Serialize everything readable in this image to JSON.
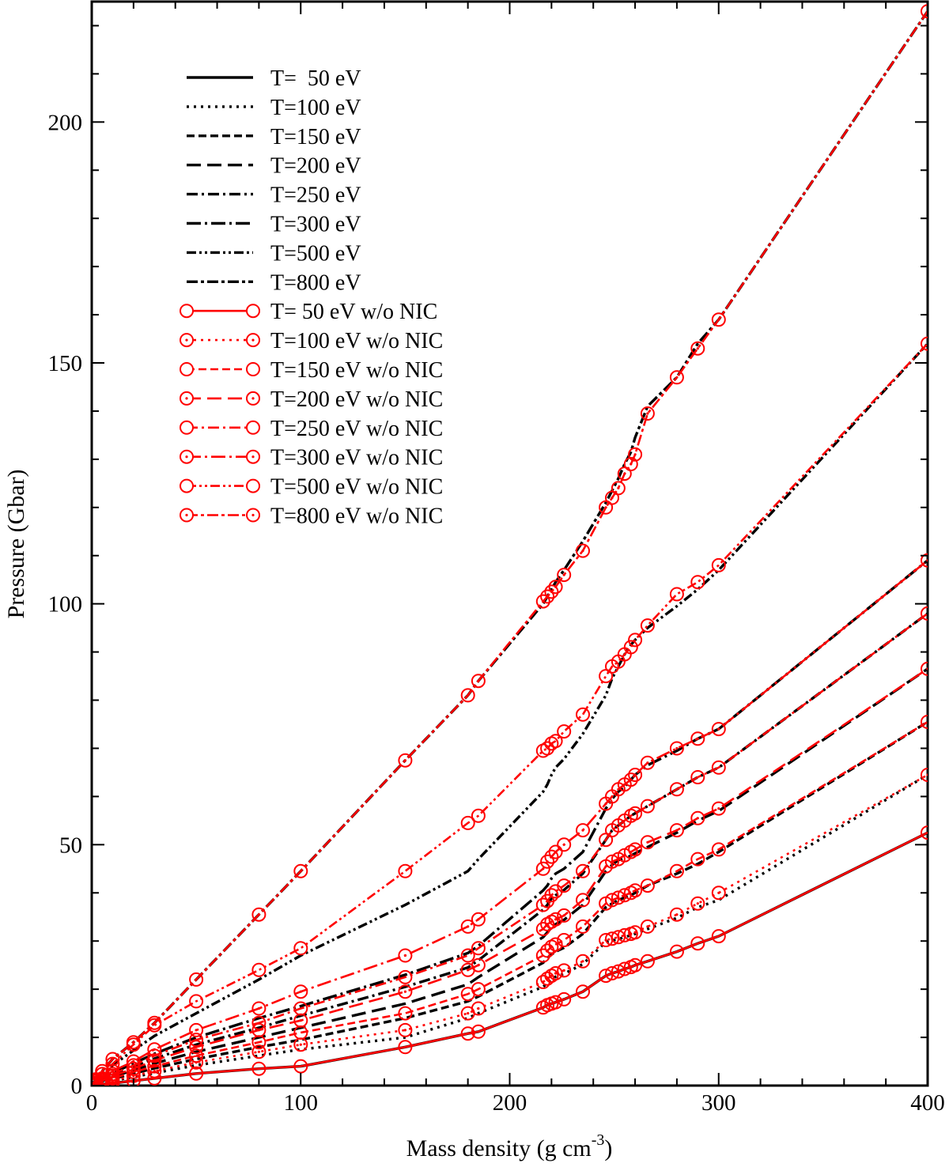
{
  "chart_data": {
    "type": "line",
    "title": "",
    "xlabel": "Mass density (g cm",
    "xlabel_sup": "-3",
    "xlabel_close": ")",
    "ylabel": "Pressure (Gbar)",
    "xlim": [
      0,
      400
    ],
    "ylim": [
      0,
      225
    ],
    "xticks": [
      0,
      100,
      200,
      300,
      400
    ],
    "yticks": [
      0,
      50,
      100,
      150,
      200
    ],
    "grid": false,
    "legend_position": "top-left",
    "x": [
      1,
      2,
      5,
      10,
      20,
      30,
      50,
      80,
      100,
      150,
      180,
      185,
      216,
      218,
      220,
      222,
      226,
      235,
      246,
      249,
      252,
      255,
      258,
      260,
      266,
      280,
      290,
      300,
      400
    ],
    "series": [
      {
        "name": "T=  50 eV",
        "model": "full",
        "color": "#000000",
        "dash": "",
        "values": [
          0.05,
          0.1,
          0.3,
          0.5,
          1.0,
          1.5,
          2.5,
          3.5,
          4.0,
          8.0,
          10.8,
          11.2,
          16.2,
          16.7,
          17.0,
          17.3,
          17.9,
          19.5,
          22.8,
          23.3,
          23.7,
          24.2,
          24.6,
          25.0,
          25.8,
          27.8,
          29.5,
          31.0,
          52.5
        ]
      },
      {
        "name": "T=100 eV",
        "model": "full",
        "color": "#000000",
        "dash": "3 6",
        "values": [
          0.1,
          0.2,
          0.5,
          1.0,
          1.8,
          2.6,
          4.2,
          6.2,
          7.5,
          10.0,
          14.0,
          15.0,
          20.5,
          21.2,
          22.0,
          22.6,
          23.2,
          25.2,
          29.8,
          30.1,
          30.4,
          30.8,
          31.2,
          31.5,
          32.5,
          34.8,
          37.0,
          38.5,
          64.5
        ]
      },
      {
        "name": "T=150 eV",
        "model": "full",
        "color": "#000000",
        "dash": "10 5",
        "values": [
          0.15,
          0.3,
          0.7,
          1.4,
          2.5,
          3.6,
          5.5,
          8.0,
          9.5,
          14.0,
          17.5,
          18.5,
          25.5,
          26.5,
          27.2,
          27.8,
          28.6,
          31.5,
          37.0,
          37.8,
          38.5,
          39.0,
          39.5,
          40.0,
          41.5,
          44.0,
          46.0,
          48.5,
          75.5
        ]
      },
      {
        "name": "T=200 eV",
        "model": "full",
        "color": "#000000",
        "dash": "18 8",
        "values": [
          0.2,
          0.4,
          0.9,
          1.8,
          3.2,
          4.6,
          7.0,
          10.0,
          12.0,
          17.0,
          21.0,
          22.5,
          30.8,
          31.8,
          32.8,
          33.5,
          34.4,
          37.5,
          44.5,
          45.8,
          46.8,
          47.2,
          47.7,
          48.2,
          49.5,
          52.5,
          55.0,
          57.0,
          86.5
        ]
      },
      {
        "name": "T=250 eV",
        "model": "full",
        "color": "#000000",
        "dash": "14 5 3 5",
        "values": [
          0.25,
          0.5,
          1.1,
          2.2,
          3.9,
          5.6,
          8.5,
          12.0,
          14.5,
          20.5,
          24.5,
          26.0,
          36.5,
          37.5,
          38.8,
          39.5,
          40.6,
          44.0,
          51.0,
          53.0,
          54.0,
          55.0,
          56.0,
          56.5,
          58.0,
          61.5,
          64.0,
          66.0,
          98.0
        ]
      },
      {
        "name": "T=300 eV",
        "model": "full",
        "color": "#000000",
        "dash": "18 5 3 5",
        "values": [
          0.3,
          0.6,
          1.3,
          2.6,
          4.6,
          6.6,
          10.0,
          14.0,
          16.5,
          23.0,
          27.5,
          29.0,
          40.5,
          41.5,
          43.0,
          44.0,
          45.0,
          48.5,
          57.5,
          59.5,
          61.0,
          62.0,
          63.5,
          64.5,
          66.5,
          69.5,
          72.0,
          74.0,
          109.0
        ]
      },
      {
        "name": "T=500 eV",
        "model": "full",
        "color": "#000000",
        "dash": "12 4 3 4 3 4",
        "values": [
          0.4,
          0.9,
          2.1,
          4.2,
          7.3,
          10.3,
          15.0,
          22.0,
          27.0,
          37.5,
          44.5,
          47.0,
          61.0,
          62.5,
          64.5,
          66.0,
          67.8,
          73.0,
          81.0,
          84.5,
          87.0,
          89.5,
          91.5,
          92.5,
          95.0,
          99.5,
          103.0,
          107.0,
          154.0
        ]
      },
      {
        "name": "T=800 eV",
        "model": "full",
        "color": "#000000",
        "dash": "14 4 4 4",
        "values": [
          0.6,
          1.3,
          3.0,
          5.5,
          9.0,
          13.0,
          22.0,
          35.5,
          44.5,
          67.5,
          81.0,
          84.0,
          100.0,
          101.5,
          103.0,
          104.5,
          107.0,
          113.0,
          121.0,
          123.5,
          126.0,
          129.0,
          131.5,
          134.5,
          141.0,
          147.0,
          154.0,
          159.0,
          223.0
        ]
      },
      {
        "name": "T= 50 eV w/o NIC",
        "model": "no-nic",
        "color": "#ff0000",
        "dash": "",
        "values": [
          0.05,
          0.1,
          0.3,
          0.5,
          1.0,
          1.5,
          2.5,
          3.5,
          4.0,
          8.0,
          10.8,
          11.2,
          16.2,
          16.7,
          17.0,
          17.3,
          17.9,
          19.5,
          22.8,
          23.3,
          23.7,
          24.2,
          24.6,
          25.0,
          25.8,
          27.8,
          29.5,
          31.0,
          52.5
        ]
      },
      {
        "name": "T=100 eV w/o NIC",
        "model": "no-nic",
        "color": "#ff0000",
        "dash": "3 6",
        "values": [
          0.1,
          0.2,
          0.5,
          1.0,
          2.0,
          3.0,
          4.8,
          7.0,
          8.5,
          11.5,
          15.0,
          16.0,
          21.5,
          22.2,
          22.8,
          23.3,
          23.9,
          25.8,
          30.2,
          30.5,
          30.8,
          31.2,
          31.5,
          31.8,
          33.0,
          35.5,
          37.8,
          40.0,
          64.5
        ]
      },
      {
        "name": "T=150 eV w/o NIC",
        "model": "no-nic",
        "color": "#ff0000",
        "dash": "10 5",
        "values": [
          0.15,
          0.3,
          0.7,
          1.5,
          2.8,
          4.0,
          6.2,
          9.0,
          11.0,
          15.0,
          19.0,
          20.0,
          27.0,
          28.0,
          28.8,
          29.3,
          30.2,
          33.0,
          37.8,
          38.5,
          39.0,
          39.5,
          40.0,
          40.5,
          41.5,
          44.5,
          47.0,
          49.0,
          75.5
        ]
      },
      {
        "name": "T=200 eV w/o NIC",
        "model": "no-nic",
        "color": "#ff0000",
        "dash": "18 8",
        "values": [
          0.2,
          0.4,
          1.0,
          2.0,
          3.5,
          5.2,
          8.0,
          11.5,
          13.5,
          19.5,
          24.0,
          25.0,
          32.5,
          33.5,
          34.0,
          34.5,
          35.3,
          38.5,
          45.5,
          46.5,
          47.0,
          47.8,
          48.5,
          49.0,
          50.5,
          53.0,
          55.5,
          57.5,
          86.5
        ]
      },
      {
        "name": "T=250 eV w/o NIC",
        "model": "no-nic",
        "color": "#ff0000",
        "dash": "14 5 3 5",
        "values": [
          0.25,
          0.5,
          1.2,
          2.4,
          4.2,
          6.2,
          9.5,
          13.0,
          16.0,
          22.5,
          27.0,
          28.5,
          37.5,
          38.3,
          39.5,
          40.3,
          41.5,
          44.5,
          51.0,
          53.0,
          54.0,
          55.0,
          56.0,
          56.5,
          58.0,
          61.5,
          64.0,
          66.0,
          98.0
        ]
      },
      {
        "name": "T=300 eV w/o NIC",
        "model": "no-nic",
        "color": "#ff0000",
        "dash": "18 5 3 5",
        "values": [
          0.3,
          0.6,
          1.5,
          3.0,
          5.0,
          7.5,
          11.5,
          16.0,
          19.5,
          27.0,
          33.0,
          34.5,
          45.0,
          46.5,
          47.5,
          48.5,
          50.0,
          53.0,
          58.5,
          60.0,
          61.5,
          62.5,
          63.5,
          64.5,
          67.0,
          70.0,
          72.0,
          74.0,
          109.0
        ]
      },
      {
        "name": "T=500 eV w/o NIC",
        "model": "no-nic",
        "color": "#ff0000",
        "dash": "12 4 3 4 3 4",
        "values": [
          0.5,
          1.0,
          2.4,
          4.5,
          8.5,
          12.5,
          17.5,
          24.0,
          28.5,
          44.5,
          54.5,
          56.0,
          69.5,
          70.0,
          71.0,
          71.5,
          73.5,
          77.0,
          85.0,
          87.0,
          88.0,
          89.5,
          91.0,
          92.5,
          95.5,
          102.0,
          104.5,
          108.0,
          154.0
        ]
      },
      {
        "name": "T=800 eV w/o NIC",
        "model": "no-nic",
        "color": "#ff0000",
        "dash": "14 4 4 4",
        "values": [
          0.6,
          1.3,
          3.0,
          5.5,
          9.0,
          13.0,
          22.0,
          35.5,
          44.5,
          67.5,
          81.0,
          84.0,
          100.5,
          101.5,
          102.5,
          103.5,
          106.0,
          111.0,
          120.0,
          122.0,
          124.0,
          127.0,
          129.0,
          131.0,
          139.5,
          147.0,
          153.0,
          159.0,
          223.0
        ]
      }
    ]
  }
}
